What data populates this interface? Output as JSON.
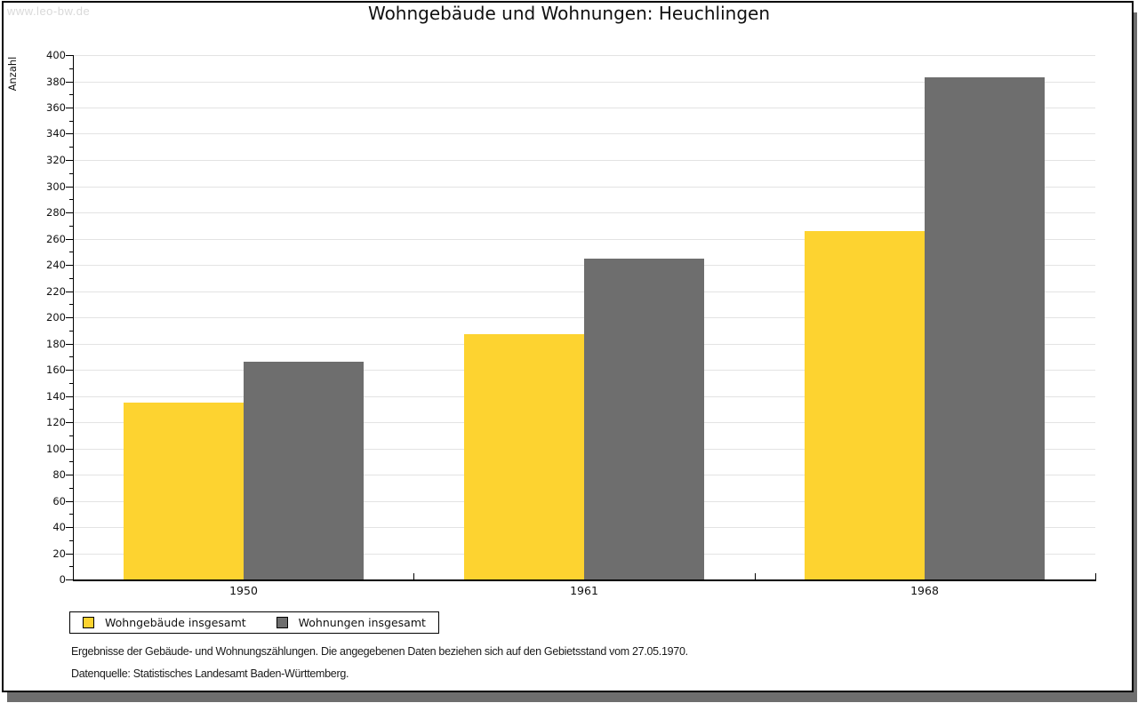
{
  "watermark": "www.leo-bw.de",
  "title": "Wohngebäude und Wohnungen: Heuchlingen",
  "footnote1": "Ergebnisse der Gebäude- und Wohnungszählungen. Die angegebenen Daten beziehen sich auf den Gebietsstand vom 27.05.1970.",
  "footnote2": "Datenquelle: Statistisches Landesamt Baden-Württemberg.",
  "colors": {
    "series_wohngebaeude": "#fdd330",
    "series_wohnungen": "#6e6e6e",
    "gridline": "#e3e3e3",
    "axis": "#000000",
    "watermark_text": "#d9d9d9",
    "frame_shadow": "#6e6e6e"
  },
  "chart_data": {
    "type": "bar",
    "title": "Wohngebäude und Wohnungen: Heuchlingen",
    "xlabel": "",
    "ylabel": "Anzahl",
    "categories": [
      "1950",
      "1961",
      "1968"
    ],
    "series": [
      {
        "name": "Wohngebäude insgesamt",
        "slug": "wohngebaeude",
        "color": "#fdd330",
        "values": [
          135,
          187,
          266
        ]
      },
      {
        "name": "Wohnungen insgesamt",
        "slug": "wohnungen",
        "color": "#6e6e6e",
        "values": [
          166,
          245,
          383
        ]
      }
    ],
    "ylim": [
      0,
      400
    ],
    "ytick_step": 20,
    "yminor_step": 10,
    "grid": true,
    "legend_position": "bottom-left"
  }
}
